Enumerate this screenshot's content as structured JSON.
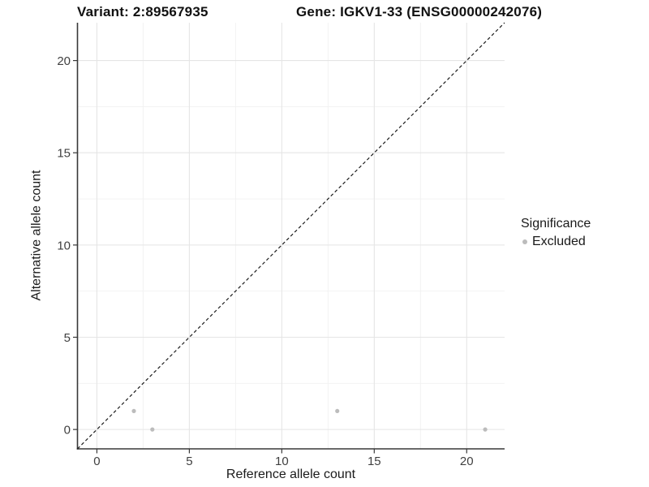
{
  "chart_data": {
    "type": "scatter",
    "titles": {
      "left": "Variant: 2:89567935",
      "right": "Gene: IGKV1-33 (ENSG00000242076)"
    },
    "xlabel": "Reference allele count",
    "ylabel": "Alternative allele count",
    "x_ticks": [
      0,
      5,
      10,
      15,
      20
    ],
    "y_ticks": [
      0,
      5,
      10,
      15,
      20
    ],
    "minor_ticks": [
      2.5,
      7.5,
      12.5,
      17.5
    ],
    "xlim": [
      -1.05,
      22.05
    ],
    "ylim": [
      -1.05,
      22.05
    ],
    "grid": true,
    "legend": {
      "title": "Significance",
      "position": "right",
      "items": [
        {
          "label": "Excluded",
          "color": "#bcbcbc"
        }
      ]
    },
    "series": [
      {
        "name": "Excluded",
        "color": "#bcbcbc",
        "points": [
          [
            2,
            1
          ],
          [
            3,
            0
          ],
          [
            13,
            1
          ],
          [
            21,
            0
          ]
        ]
      }
    ],
    "reference_line": {
      "type": "identity",
      "style": "dashed",
      "color": "#1c1c1c"
    },
    "colors": {
      "axis_line": "#383838",
      "major_grid": "#e5e5e5",
      "minor_grid": "#f1f1f1",
      "tick_label": "#404040"
    }
  }
}
